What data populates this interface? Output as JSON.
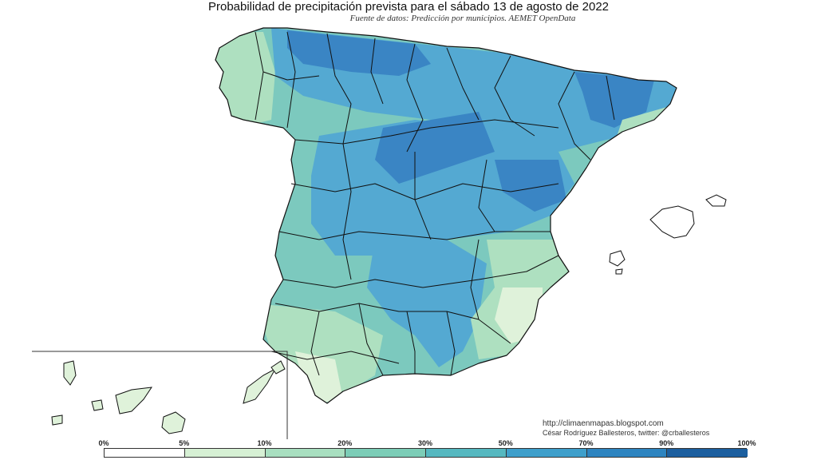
{
  "title": "Probabilidad de precipitación prevista para el sábado 13 de agosto de 2022",
  "subtitle": "Fuente de datos: Predicción por municipios. AEMET OpenData",
  "credits": {
    "url": "http://climaenmapas.blogspot.com",
    "author": "César Rodríguez Ballesteros, twitter: @crballesteros"
  },
  "legend": {
    "ticks": [
      "0%",
      "5%",
      "10%",
      "20%",
      "30%",
      "50%",
      "70%",
      "90%",
      "100%"
    ],
    "colors": [
      "#ffffff",
      "#d6f0d4",
      "#a8dfc0",
      "#7ccdb7",
      "#55b8c0",
      "#3e9fcb",
      "#2d84c0",
      "#1c5f9f"
    ]
  },
  "map_colors": {
    "border": "#111111",
    "blue_dark": "#3a85c4",
    "blue": "#54a9d2",
    "teal": "#7cc9be",
    "green": "#aee0c0",
    "light": "#dff2da"
  }
}
